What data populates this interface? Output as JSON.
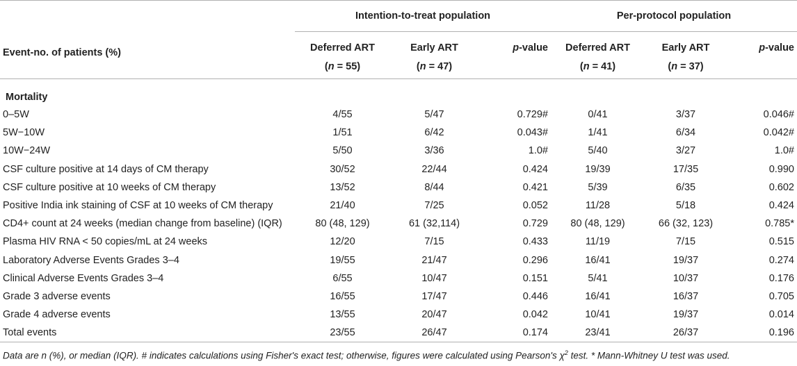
{
  "header": {
    "row_label": "Event-no. of patients (%)",
    "itt_title": "Intention-to-treat population",
    "pp_title": "Per-protocol population",
    "deferred": "Deferred ART",
    "early": "Early ART",
    "p_italic": "p",
    "p_suffix": "-value",
    "n_italic": "n",
    "n_itt_deferred": "55",
    "n_itt_early": "47",
    "n_pp_deferred": "41",
    "n_pp_early": "37"
  },
  "section_mortality": "Mortality",
  "rows": [
    {
      "label": "0–5W",
      "itt_deferred": "4/55",
      "itt_early": "5/47",
      "itt_p": "0.729#",
      "pp_deferred": "0/41",
      "pp_early": "3/37",
      "pp_p": "0.046#"
    },
    {
      "label": "5W−10W",
      "itt_deferred": "1/51",
      "itt_early": "6/42",
      "itt_p": "0.043#",
      "pp_deferred": "1/41",
      "pp_early": "6/34",
      "pp_p": "0.042#"
    },
    {
      "label": "10W−24W",
      "itt_deferred": "5/50",
      "itt_early": "3/36",
      "itt_p": "1.0#",
      "pp_deferred": "5/40",
      "pp_early": "3/27",
      "pp_p": "1.0#"
    },
    {
      "label": "CSF culture positive at 14 days of CM therapy",
      "itt_deferred": "30/52",
      "itt_early": "22/44",
      "itt_p": "0.424",
      "pp_deferred": "19/39",
      "pp_early": "17/35",
      "pp_p": "0.990"
    },
    {
      "label": "CSF culture positive at 10 weeks of CM therapy",
      "itt_deferred": "13/52",
      "itt_early": "8/44",
      "itt_p": "0.421",
      "pp_deferred": "5/39",
      "pp_early": "6/35",
      "pp_p": "0.602"
    },
    {
      "label": "Positive India ink staining of CSF at 10 weeks of CM therapy",
      "itt_deferred": "21/40",
      "itt_early": "7/25",
      "itt_p": "0.052",
      "pp_deferred": "11/28",
      "pp_early": "5/18",
      "pp_p": "0.424"
    },
    {
      "label": "CD4+ count at 24 weeks (median change from baseline) (IQR)",
      "itt_deferred": "80 (48, 129)",
      "itt_early": "61 (32,114)",
      "itt_p": "0.729",
      "pp_deferred": "80 (48, 129)",
      "pp_early": "66 (32, 123)",
      "pp_p": "0.785*"
    },
    {
      "label": "Plasma HIV RNA < 50 copies/mL at 24 weeks",
      "itt_deferred": "12/20",
      "itt_early": "7/15",
      "itt_p": "0.433",
      "pp_deferred": "11/19",
      "pp_early": "7/15",
      "pp_p": "0.515"
    },
    {
      "label": "Laboratory Adverse Events Grades 3–4",
      "itt_deferred": "19/55",
      "itt_early": "21/47",
      "itt_p": "0.296",
      "pp_deferred": "16/41",
      "pp_early": "19/37",
      "pp_p": "0.274"
    },
    {
      "label": "Clinical Adverse Events Grades 3–4",
      "itt_deferred": "6/55",
      "itt_early": "10/47",
      "itt_p": "0.151",
      "pp_deferred": "5/41",
      "pp_early": "10/37",
      "pp_p": "0.176"
    },
    {
      "label": "Grade 3 adverse events",
      "itt_deferred": "16/55",
      "itt_early": "17/47",
      "itt_p": "0.446",
      "pp_deferred": "16/41",
      "pp_early": "16/37",
      "pp_p": "0.705"
    },
    {
      "label": "Grade 4 adverse events",
      "itt_deferred": "13/55",
      "itt_early": "20/47",
      "itt_p": "0.042",
      "pp_deferred": "10/41",
      "pp_early": "19/37",
      "pp_p": "0.014"
    },
    {
      "label": "Total events",
      "itt_deferred": "23/55",
      "itt_early": "26/47",
      "itt_p": "0.174",
      "pp_deferred": "23/41",
      "pp_early": "26/37",
      "pp_p": "0.196"
    }
  ],
  "footnote": {
    "main": "Data are n (%), or median (IQR). # indicates calculations using Fisher's exact test; otherwise, figures were calculated using Pearson's χ",
    "sup": "2",
    "tail": " test. * Mann-Whitney U test was used."
  }
}
